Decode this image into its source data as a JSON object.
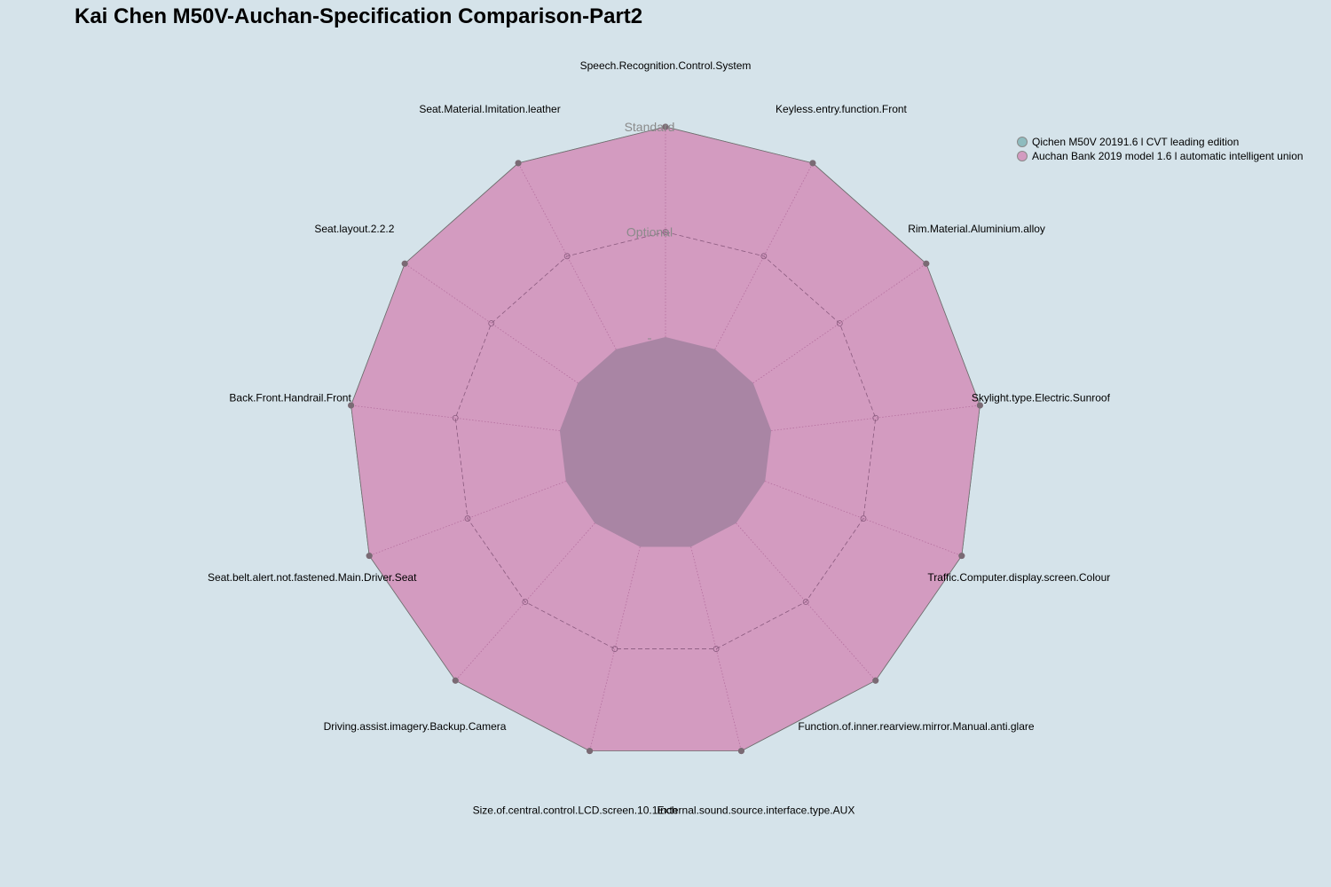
{
  "chart_data": {
    "type": "radar",
    "title": "Kai Chen M50V-Auchan-Specification Comparison-Part2",
    "axes": [
      "Speech.Recognition.Control.System",
      "Keyless.entry.function.Front",
      "Rim.Material.Aluminium.alloy",
      "Skylight.type.Electric.Sunroof",
      "Traffic.Computer.display.screen.Colour",
      "Function.of.inner.rearview.mirror.Manual.anti.glare",
      "External.sound.source.interface.type.AUX",
      "Size.of.central.control.LCD.screen.10.1inch",
      "Driving.assist.imagery.Backup.Camera",
      "Seat.belt.alert.not.fastened.Main.Driver.Seat",
      "Back.Front.Handrail.Front",
      "Seat.layout.2.2.2",
      "Seat.Material.Imitation.leather"
    ],
    "levels": [
      "",
      "Optional",
      "Standard"
    ],
    "series": [
      {
        "name": "Qichen M50V 20191.6 l CVT leading edition",
        "color": "#8fbcbf",
        "values": [
          2,
          2,
          2,
          2,
          2,
          2,
          2,
          2,
          2,
          2,
          2,
          2,
          2
        ]
      },
      {
        "name": "Auchan Bank 2019 model 1.6 l automatic intelligent union",
        "color": "#d39bc0",
        "values": [
          2,
          2,
          2,
          2,
          2,
          2,
          2,
          2,
          2,
          2,
          2,
          2,
          2
        ]
      }
    ],
    "range": [
      0,
      2
    ],
    "legend_position": "top-right"
  }
}
